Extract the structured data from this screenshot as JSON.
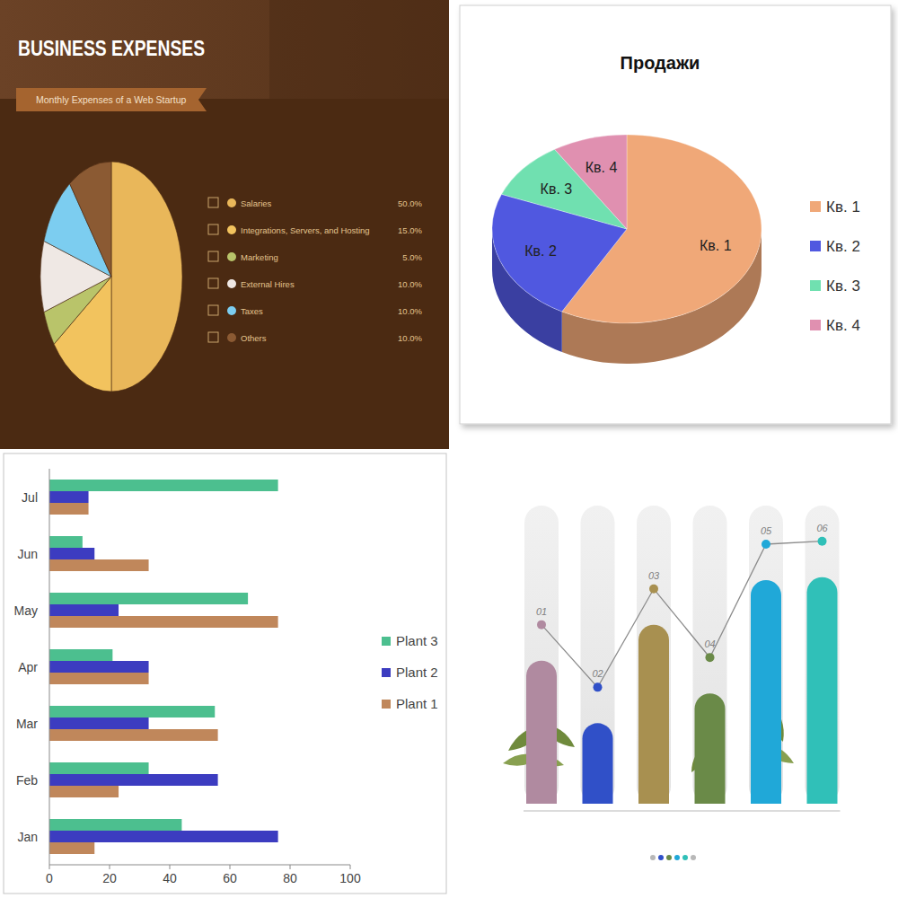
{
  "chart_data": [
    {
      "type": "pie",
      "title": "BUSINESS EXPENSES",
      "subtitle": "Monthly Expenses of a Web Startup",
      "categories": [
        "Salaries",
        "Integrations, Servers, and Hosting",
        "Marketing",
        "External Hires",
        "Taxes",
        "Others"
      ],
      "values": [
        50,
        15,
        5,
        10,
        10,
        10
      ],
      "value_labels": [
        "50.0%",
        "15.0%",
        "5.0%",
        "10.0%",
        "10.0%",
        "10.0%"
      ],
      "colors": [
        "#e9b75a",
        "#f2c35e",
        "#b9c46a",
        "#efe8e4",
        "#7ccdf0",
        "#8b5a33"
      ],
      "legend": "right"
    },
    {
      "type": "pie",
      "title": "Продажи",
      "categories": [
        "Кв. 1",
        "Кв. 2",
        "Кв. 3",
        "Кв. 4"
      ],
      "values": [
        58,
        23,
        10,
        9
      ],
      "colors": [
        "#f0a878",
        "#5058e0",
        "#70e0b0",
        "#e090b0"
      ],
      "legend": "right"
    },
    {
      "type": "bar",
      "orientation": "horizontal",
      "categories": [
        "Jan",
        "Feb",
        "Mar",
        "Apr",
        "May",
        "Jun",
        "Jul"
      ],
      "series": [
        {
          "name": "Plant 1",
          "color": "#c0875b",
          "values": [
            15,
            23,
            56,
            33,
            76,
            33,
            13
          ]
        },
        {
          "name": "Plant 2",
          "color": "#3c3cc0",
          "values": [
            76,
            56,
            33,
            33,
            23,
            15,
            13
          ]
        },
        {
          "name": "Plant 3",
          "color": "#4cbf8f",
          "values": [
            44,
            33,
            55,
            21,
            66,
            11,
            76
          ]
        }
      ],
      "xlim": [
        0,
        100
      ],
      "xticks": [
        0,
        20,
        40,
        60,
        80,
        100
      ],
      "grid": false,
      "legend": "right"
    },
    {
      "type": "bar",
      "categories": [
        "01",
        "02",
        "03",
        "04",
        "05",
        "06"
      ],
      "values": [
        48,
        27,
        60,
        37,
        75,
        76
      ],
      "colors": [
        "#b08aa0",
        "#3050c8",
        "#a89050",
        "#6a8a48",
        "#20a8d8",
        "#30c0b8"
      ],
      "ylim": [
        0,
        100
      ],
      "tick_labels": false,
      "marker": "circle",
      "line_style": "solid"
    }
  ]
}
